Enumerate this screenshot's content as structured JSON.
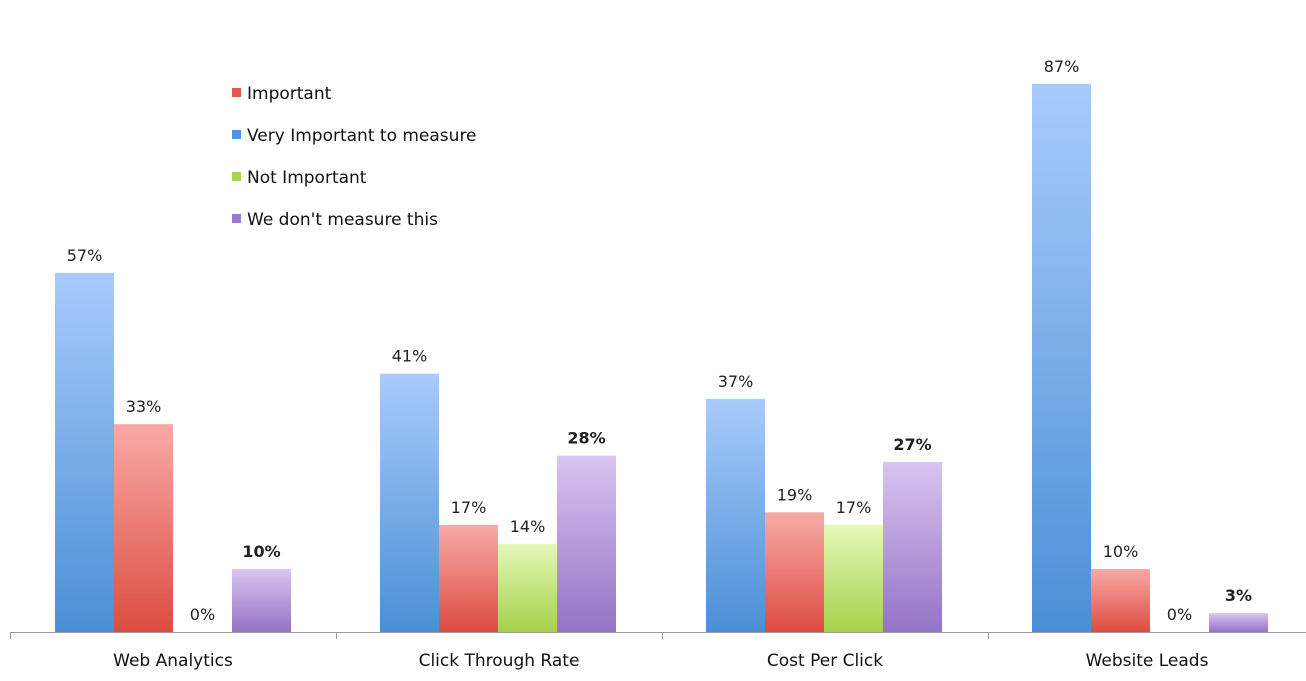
{
  "chart_data": {
    "type": "bar",
    "title": "",
    "xlabel": "",
    "ylabel": "",
    "ylim": [
      0,
      90
    ],
    "grid": false,
    "legend_position": "top-left",
    "categories": [
      "Web Analytics",
      "Click Through Rate",
      "Cost Per Click",
      "Website Leads"
    ],
    "series": [
      {
        "name": "Very Important to measure",
        "values": [
          57,
          41,
          37,
          87
        ],
        "labels": [
          "57%",
          "41%",
          "37%",
          "87%"
        ],
        "bold": [
          false,
          false,
          false,
          false
        ],
        "color_top": "#a8cbfb",
        "color_bottom": "#4a8fd6",
        "legend_color": "#4f93dc"
      },
      {
        "name": "Important",
        "values": [
          33,
          17,
          19,
          10
        ],
        "labels": [
          "33%",
          "17%",
          "19%",
          "10%"
        ],
        "bold": [
          false,
          false,
          false,
          false
        ],
        "color_top": "#f9aaa6",
        "color_bottom": "#dc4c42",
        "legend_color": "#e0574d"
      },
      {
        "name": "Not Important",
        "values": [
          0,
          14,
          17,
          0
        ],
        "labels": [
          "0%",
          "14%",
          "17%",
          "0%"
        ],
        "bold": [
          false,
          false,
          false,
          false
        ],
        "color_top": "#e4f8b8",
        "color_bottom": "#a6d14c",
        "legend_color": "#a9d453"
      },
      {
        "name": "We don't measure this",
        "values": [
          10,
          28,
          27,
          3
        ],
        "labels": [
          "10%",
          "28%",
          "27%",
          "3%"
        ],
        "bold": [
          true,
          true,
          true,
          true
        ],
        "color_top": "#d9c4f2",
        "color_bottom": "#9473c4",
        "legend_color": "#9b7acb"
      }
    ],
    "legend_order": [
      1,
      0,
      2,
      3
    ]
  }
}
